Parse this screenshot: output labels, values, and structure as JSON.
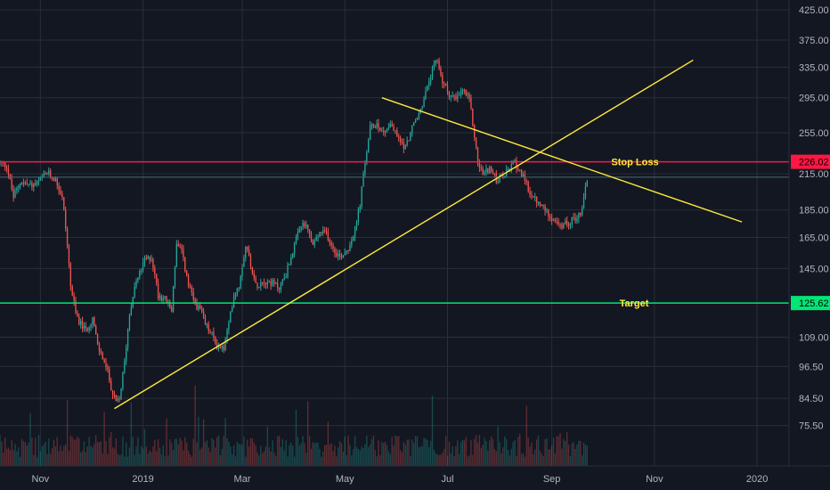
{
  "chart_data": {
    "type": "candlestick",
    "title": "",
    "xlabel": "",
    "ylabel": "",
    "y_scale": "log",
    "ylim": [
      70,
      430
    ],
    "xlim": [
      "2018-10-08",
      "2020-01-20"
    ],
    "grid": true,
    "y_ticks": [
      "425.00",
      "375.00",
      "335.00",
      "295.00",
      "255.00",
      "215.00",
      "185.00",
      "165.00",
      "145.00",
      "125.62",
      "109.00",
      "96.50",
      "84.50",
      "75.50"
    ],
    "x_ticks": [
      {
        "label": "Nov",
        "date": "2018-11-01"
      },
      {
        "label": "2019",
        "date": "2019-01-01"
      },
      {
        "label": "Mar",
        "date": "2019-03-01"
      },
      {
        "label": "May",
        "date": "2019-05-01"
      },
      {
        "label": "Jul",
        "date": "2019-07-01"
      },
      {
        "label": "Sep",
        "date": "2019-09-01"
      },
      {
        "label": "Nov",
        "date": "2019-11-01"
      },
      {
        "label": "2020",
        "date": "2020-01-01"
      }
    ],
    "price_path": [
      [
        "2018-10-08",
        225
      ],
      [
        "2018-10-12",
        222
      ],
      [
        "2018-10-16",
        195
      ],
      [
        "2018-10-20",
        208
      ],
      [
        "2018-10-26",
        205
      ],
      [
        "2018-10-30",
        206
      ],
      [
        "2018-11-05",
        216
      ],
      [
        "2018-11-10",
        210
      ],
      [
        "2018-11-14",
        195
      ],
      [
        "2018-11-16",
        172
      ],
      [
        "2018-11-19",
        135
      ],
      [
        "2018-11-22",
        120
      ],
      [
        "2018-11-25",
        115
      ],
      [
        "2018-11-28",
        112
      ],
      [
        "2018-12-02",
        118
      ],
      [
        "2018-12-05",
        105
      ],
      [
        "2018-12-08",
        100
      ],
      [
        "2018-12-11",
        94
      ],
      [
        "2018-12-14",
        86
      ],
      [
        "2018-12-16",
        83
      ],
      [
        "2018-12-18",
        84
      ],
      [
        "2018-12-21",
        98
      ],
      [
        "2018-12-24",
        120
      ],
      [
        "2018-12-27",
        135
      ],
      [
        "2018-12-30",
        142
      ],
      [
        "2019-01-02",
        150
      ],
      [
        "2019-01-06",
        152
      ],
      [
        "2019-01-10",
        130
      ],
      [
        "2019-01-14",
        128
      ],
      [
        "2019-01-18",
        122
      ],
      [
        "2019-01-21",
        160
      ],
      [
        "2019-01-24",
        155
      ],
      [
        "2019-01-28",
        135
      ],
      [
        "2019-02-01",
        125
      ],
      [
        "2019-02-04",
        122
      ],
      [
        "2019-02-07",
        115
      ],
      [
        "2019-02-11",
        110
      ],
      [
        "2019-02-14",
        105
      ],
      [
        "2019-02-18",
        104
      ],
      [
        "2019-02-21",
        115
      ],
      [
        "2019-02-24",
        130
      ],
      [
        "2019-02-27",
        135
      ],
      [
        "2019-03-03",
        160
      ],
      [
        "2019-03-06",
        148
      ],
      [
        "2019-03-09",
        135
      ],
      [
        "2019-03-13",
        138
      ],
      [
        "2019-03-18",
        137
      ],
      [
        "2019-03-23",
        134
      ],
      [
        "2019-03-27",
        142
      ],
      [
        "2019-04-02",
        163
      ],
      [
        "2019-04-06",
        175
      ],
      [
        "2019-04-09",
        170
      ],
      [
        "2019-04-12",
        160
      ],
      [
        "2019-04-16",
        168
      ],
      [
        "2019-04-20",
        168
      ],
      [
        "2019-04-24",
        158
      ],
      [
        "2019-04-28",
        152
      ],
      [
        "2019-05-03",
        158
      ],
      [
        "2019-05-07",
        170
      ],
      [
        "2019-05-10",
        190
      ],
      [
        "2019-05-13",
        225
      ],
      [
        "2019-05-16",
        260
      ],
      [
        "2019-05-20",
        265
      ],
      [
        "2019-05-24",
        255
      ],
      [
        "2019-05-28",
        265
      ],
      [
        "2019-06-02",
        248
      ],
      [
        "2019-06-06",
        240
      ],
      [
        "2019-06-10",
        260
      ],
      [
        "2019-06-14",
        275
      ],
      [
        "2019-06-18",
        300
      ],
      [
        "2019-06-22",
        330
      ],
      [
        "2019-06-25",
        345
      ],
      [
        "2019-06-28",
        315
      ],
      [
        "2019-07-02",
        300
      ],
      [
        "2019-07-06",
        292
      ],
      [
        "2019-07-10",
        305
      ],
      [
        "2019-07-14",
        292
      ],
      [
        "2019-07-16",
        265
      ],
      [
        "2019-07-19",
        225
      ],
      [
        "2019-07-22",
        215
      ],
      [
        "2019-07-26",
        220
      ],
      [
        "2019-07-30",
        210
      ],
      [
        "2019-08-03",
        212
      ],
      [
        "2019-08-07",
        220
      ],
      [
        "2019-08-10",
        225
      ],
      [
        "2019-08-13",
        218
      ],
      [
        "2019-08-16",
        208
      ],
      [
        "2019-08-20",
        196
      ],
      [
        "2019-08-24",
        190
      ],
      [
        "2019-08-28",
        185
      ],
      [
        "2019-09-02",
        178
      ],
      [
        "2019-09-06",
        172
      ],
      [
        "2019-09-10",
        175
      ],
      [
        "2019-09-14",
        178
      ],
      [
        "2019-09-18",
        182
      ],
      [
        "2019-09-20",
        195
      ],
      [
        "2019-09-22",
        210
      ]
    ],
    "volume_scale": [
      0,
      12
    ],
    "horizontal_levels": [
      {
        "price": 226.02,
        "label": "Stop Loss",
        "badge": "226.02",
        "color": "#ff1744"
      },
      {
        "price": 125.62,
        "label": "Target",
        "badge": "125.62",
        "color": "#00e676"
      }
    ],
    "current_price_line": {
      "price": 212,
      "color": "#4a6a7a"
    },
    "trendlines": [
      {
        "name": "",
        "color": "#ffeb3b",
        "points": [
          [
            "2018-12-15",
            81
          ],
          [
            "2019-11-24",
            345
          ]
        ]
      },
      {
        "name": "",
        "color": "#ffeb3b",
        "points": [
          [
            "2019-05-23",
            295
          ],
          [
            "2019-12-23",
            176
          ]
        ]
      }
    ],
    "colors": {
      "up": "#26a69a",
      "down": "#ef5350",
      "background": "#131722",
      "grid": "#2a2e39"
    }
  }
}
